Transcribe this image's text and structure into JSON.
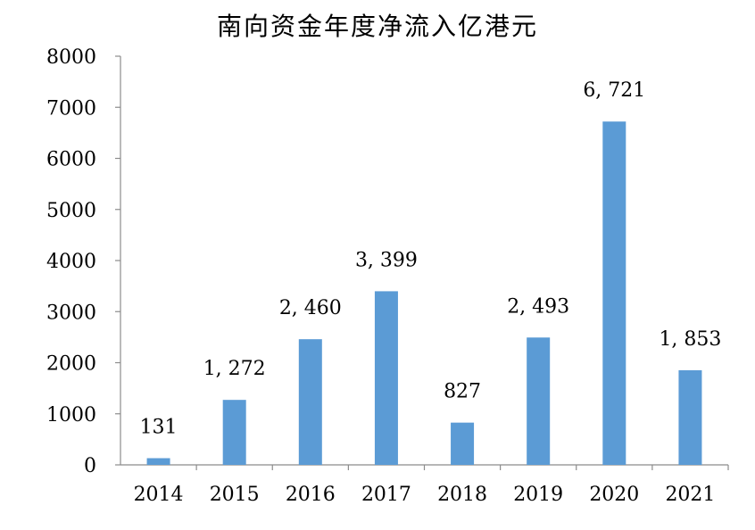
{
  "chart_data": {
    "type": "bar",
    "title": "南向资金年度净流入亿港元",
    "categories": [
      "2014",
      "2015",
      "2016",
      "2017",
      "2018",
      "2019",
      "2020",
      "2021"
    ],
    "values": [
      131,
      1272,
      2460,
      3399,
      827,
      2493,
      6721,
      1853
    ],
    "data_labels": [
      "131",
      "1, 272",
      "2, 460",
      "3, 399",
      "827",
      "2, 493",
      "6, 721",
      "1, 853"
    ],
    "ylim": [
      0,
      8000
    ],
    "yticks": [
      "0",
      "1000",
      "2000",
      "3000",
      "4000",
      "5000",
      "6000",
      "7000",
      "8000"
    ],
    "xlabel": "",
    "ylabel": "",
    "grid": false,
    "legend": "none",
    "bar_color": "#5b9bd5"
  }
}
